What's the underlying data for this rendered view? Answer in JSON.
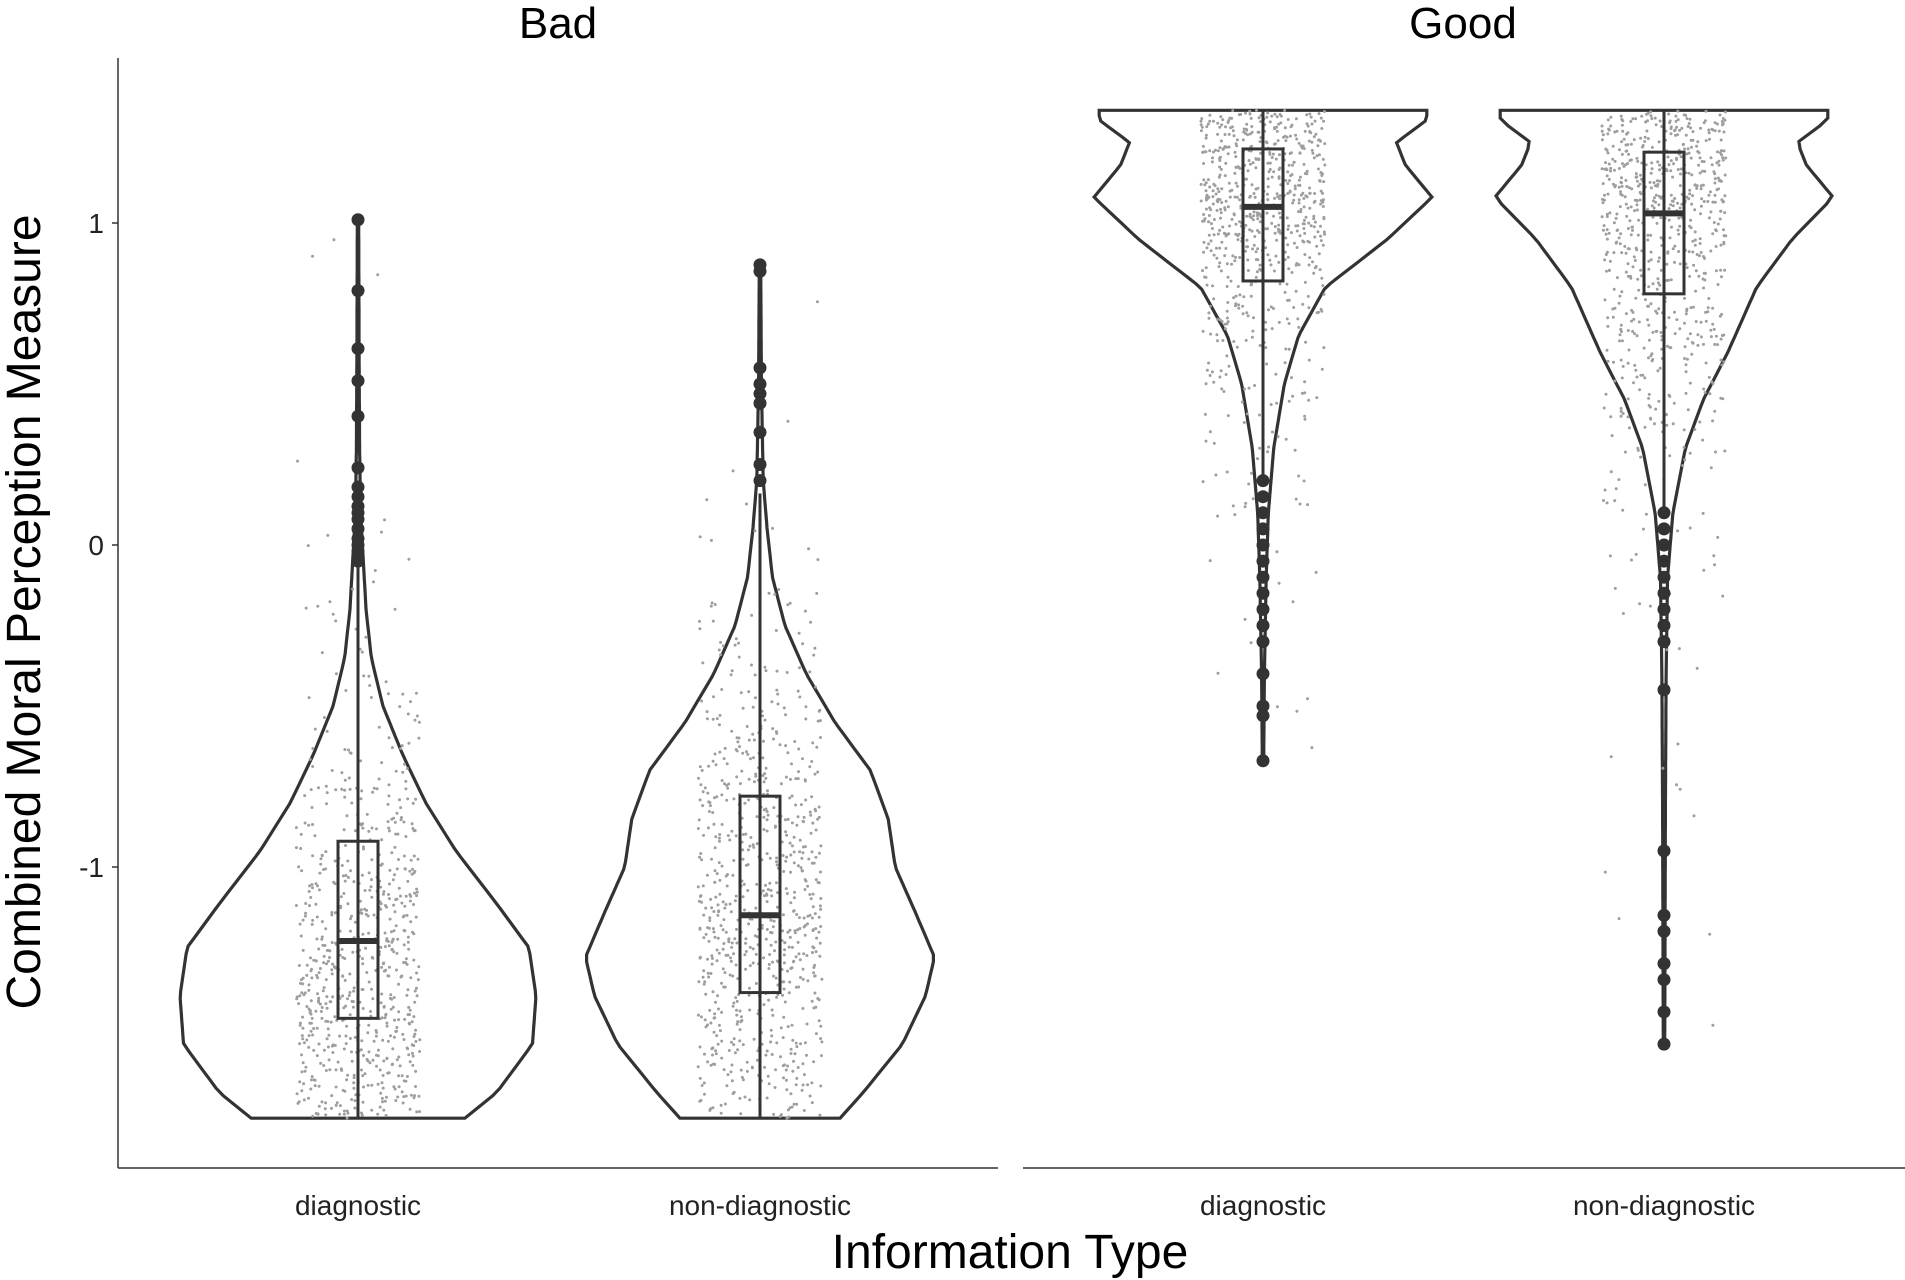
{
  "chart_data": {
    "type": "violin",
    "xlabel": "Information Type",
    "ylabel": "Combined Moral Perception Measure",
    "ylim": [
      -1.9,
      1.5
    ],
    "y_ticks": [
      -1,
      0,
      1
    ],
    "categories": [
      "diagnostic",
      "non-diagnostic"
    ],
    "grid": false,
    "panels": [
      {
        "title": "Bad",
        "groups": [
          {
            "category": "diagnostic",
            "min": -1.78,
            "max": 1.01,
            "box": {
              "q1": -1.47,
              "median": -1.23,
              "q3": -0.92,
              "whisker_low": -1.78,
              "whisker_high": 0.1
            },
            "outliers": [
              1.01,
              0.79,
              0.61,
              0.51,
              0.4,
              0.24,
              0.18,
              0.15,
              0.12,
              0.1,
              0.08,
              0.05,
              0.02,
              0.0,
              -0.02,
              -0.05
            ],
            "density": [
              [
                -1.78,
                0.6
              ],
              [
                -1.7,
                0.78
              ],
              [
                -1.55,
                0.98
              ],
              [
                -1.4,
                1.0
              ],
              [
                -1.25,
                0.96
              ],
              [
                -1.1,
                0.76
              ],
              [
                -0.95,
                0.55
              ],
              [
                -0.8,
                0.38
              ],
              [
                -0.65,
                0.25
              ],
              [
                -0.5,
                0.14
              ],
              [
                -0.35,
                0.075
              ],
              [
                -0.2,
                0.045
              ],
              [
                -0.05,
                0.03
              ],
              [
                0.1,
                0.014
              ],
              [
                0.3,
                0.009
              ],
              [
                0.6,
                0.006
              ],
              [
                1.0,
                0.004
              ]
            ],
            "jitter_count": 720
          },
          {
            "category": "non-diagnostic",
            "min": -1.78,
            "max": 0.87,
            "box": {
              "q1": -1.39,
              "median": -1.15,
              "q3": -0.78,
              "whisker_low": -1.78,
              "whisker_high": 0.16
            },
            "outliers": [
              0.87,
              0.85,
              0.55,
              0.5,
              0.47,
              0.44,
              0.35,
              0.25,
              0.2
            ],
            "density": [
              [
                -1.78,
                0.45
              ],
              [
                -1.7,
                0.58
              ],
              [
                -1.55,
                0.8
              ],
              [
                -1.4,
                0.93
              ],
              [
                -1.28,
                0.98
              ],
              [
                -1.15,
                0.88
              ],
              [
                -1.0,
                0.76
              ],
              [
                -0.85,
                0.72
              ],
              [
                -0.7,
                0.62
              ],
              [
                -0.55,
                0.42
              ],
              [
                -0.4,
                0.26
              ],
              [
                -0.25,
                0.14
              ],
              [
                -0.1,
                0.07
              ],
              [
                0.05,
                0.04
              ],
              [
                0.2,
                0.018
              ],
              [
                0.5,
                0.008
              ],
              [
                0.87,
                0.004
              ]
            ],
            "jitter_count": 760
          }
        ]
      },
      {
        "title": "Good",
        "groups": [
          {
            "category": "diagnostic",
            "min": -0.67,
            "max": 1.35,
            "box": {
              "q1": 0.82,
              "median": 1.05,
              "q3": 1.23,
              "whisker_low": 0.2,
              "whisker_high": 1.35
            },
            "outliers": [
              0.2,
              0.15,
              0.1,
              0.05,
              0.0,
              -0.05,
              -0.1,
              -0.15,
              -0.2,
              -0.25,
              -0.3,
              -0.4,
              -0.5,
              -0.53,
              -0.67
            ],
            "density": [
              [
                -0.67,
                0.004
              ],
              [
                -0.4,
                0.008
              ],
              [
                -0.1,
                0.018
              ],
              [
                0.1,
                0.03
              ],
              [
                0.3,
                0.06
              ],
              [
                0.5,
                0.12
              ],
              [
                0.65,
                0.2
              ],
              [
                0.8,
                0.35
              ],
              [
                0.95,
                0.7
              ],
              [
                1.08,
                0.95
              ],
              [
                1.18,
                0.8
              ],
              [
                1.25,
                0.75
              ],
              [
                1.32,
                0.92
              ],
              [
                1.35,
                0.92
              ]
            ],
            "jitter_count": 700
          },
          {
            "category": "non-diagnostic",
            "min": -1.55,
            "max": 1.35,
            "box": {
              "q1": 0.78,
              "median": 1.03,
              "q3": 1.22,
              "whisker_low": 0.1,
              "whisker_high": 1.35
            },
            "outliers": [
              0.1,
              0.05,
              0.0,
              -0.05,
              -0.1,
              -0.15,
              -0.2,
              -0.25,
              -0.3,
              -0.45,
              -0.95,
              -1.15,
              -1.2,
              -1.3,
              -1.35,
              -1.45,
              -1.55
            ],
            "density": [
              [
                -1.55,
                0.004
              ],
              [
                -1.2,
                0.006
              ],
              [
                -0.8,
                0.008
              ],
              [
                -0.4,
                0.012
              ],
              [
                -0.1,
                0.02
              ],
              [
                0.1,
                0.05
              ],
              [
                0.3,
                0.12
              ],
              [
                0.45,
                0.22
              ],
              [
                0.6,
                0.36
              ],
              [
                0.8,
                0.52
              ],
              [
                0.95,
                0.72
              ],
              [
                1.08,
                0.95
              ],
              [
                1.18,
                0.8
              ],
              [
                1.25,
                0.75
              ],
              [
                1.32,
                0.92
              ],
              [
                1.35,
                0.92
              ]
            ],
            "jitter_count": 720
          }
        ]
      }
    ]
  }
}
